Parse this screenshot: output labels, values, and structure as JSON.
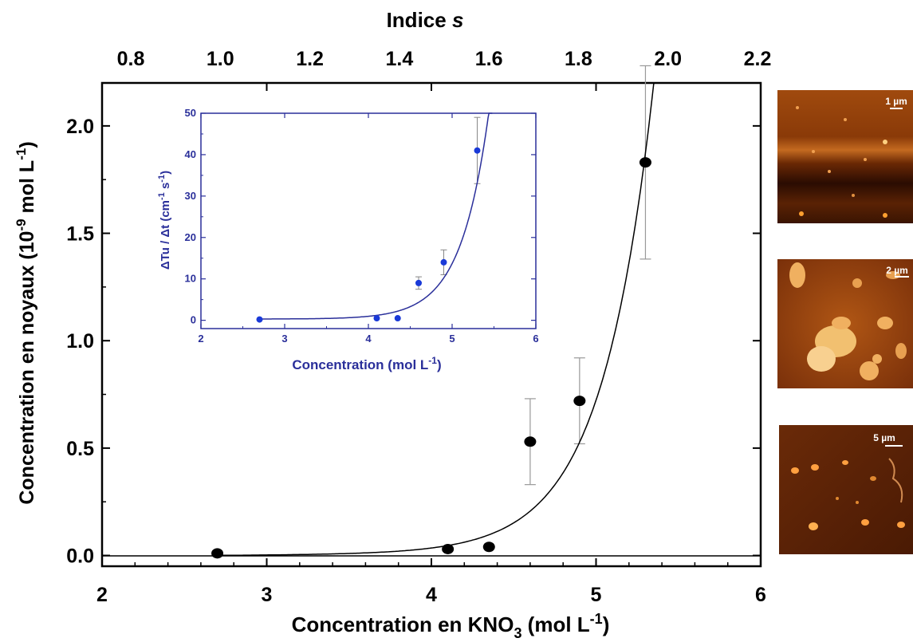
{
  "chart_data": [
    {
      "type": "scatter",
      "top_axis_label": "Indice s",
      "top_ticks": [
        "0.8",
        "1.0",
        "1.2",
        "1.4",
        "1.6",
        "1.8",
        "2.0",
        "2.2"
      ],
      "top_ticks_pos": [
        0.8,
        1.0,
        1.2,
        1.4,
        1.6,
        1.8,
        2.0,
        2.2
      ],
      "xlabel": "Concentration en KNO3 (mol L-1)",
      "ylabel": "Concentration en noyaux (10-9 mol L-1)",
      "xlim": [
        2,
        6
      ],
      "ylim": [
        -0.05,
        2.2
      ],
      "x_ticks": [
        "2",
        "3",
        "4",
        "5",
        "6"
      ],
      "y_ticks": [
        "0.0",
        "0.5",
        "1.0",
        "1.5",
        "2.0"
      ],
      "series": [
        {
          "x": [
            2.7,
            4.1,
            4.35,
            4.6,
            4.9,
            5.3
          ],
          "y": [
            0.01,
            0.03,
            0.04,
            0.53,
            0.72,
            1.83
          ],
          "err": [
            0,
            0,
            0,
            0.2,
            0.2,
            0.45
          ]
        }
      ],
      "fit_curve": "exponential"
    },
    {
      "type": "scatter",
      "xlabel": "Concentration (mol L-1)",
      "ylabel": "ΔTu / Δt (cm-1 s-1)",
      "xlim": [
        2,
        6
      ],
      "ylim": [
        -2,
        50
      ],
      "x_ticks": [
        "2",
        "3",
        "4",
        "5",
        "6"
      ],
      "y_ticks": [
        "0",
        "10",
        "20",
        "30",
        "40",
        "50"
      ],
      "series": [
        {
          "x": [
            2.7,
            4.1,
            4.35,
            4.6,
            4.9,
            5.3
          ],
          "y": [
            0.2,
            0.5,
            0.5,
            9,
            14,
            41
          ],
          "err": [
            0,
            0,
            0,
            1.5,
            3,
            8
          ]
        }
      ],
      "fit_curve": "exponential",
      "color": "#2a2f9a"
    }
  ],
  "micrographs": [
    {
      "scale_label": "1 µm"
    },
    {
      "scale_label": "2 µm"
    },
    {
      "scale_label": "5 µm"
    }
  ]
}
